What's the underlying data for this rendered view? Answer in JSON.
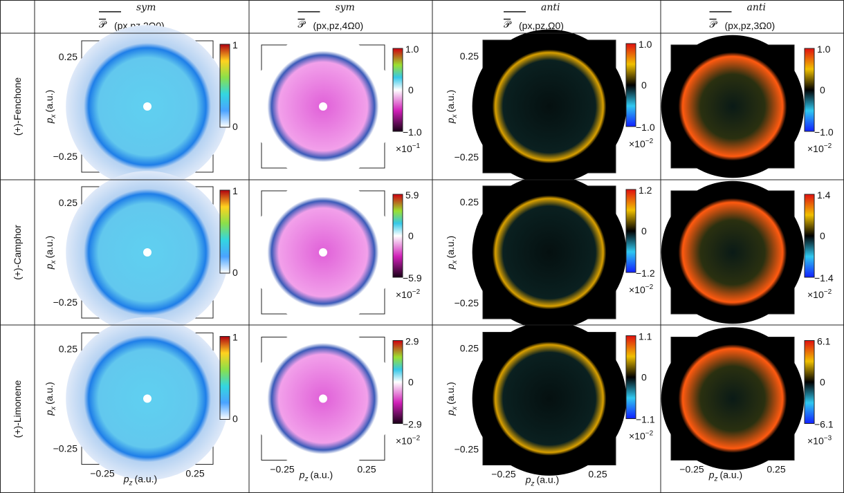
{
  "columns": [
    {
      "symbol": "𝒫",
      "superscript": "sym",
      "subscript": "(px,pz,2Ω0)"
    },
    {
      "symbol": "𝒫",
      "superscript": "sym",
      "subscript": "(px,pz,4Ω0)"
    },
    {
      "symbol": "𝒫",
      "superscript": "anti",
      "subscript": "(px,pz,Ω0)"
    },
    {
      "symbol": "𝒫",
      "superscript": "anti",
      "subscript": "(px,pz,3Ω0)"
    }
  ],
  "axes": {
    "variable": "p",
    "y_sub": "x",
    "x_sub": "z",
    "units": "(a.u.)",
    "tick_pos": "0.25",
    "tick_neg": "−0.25"
  },
  "rows": [
    {
      "label": "(+)-Fenchone",
      "panels": [
        {
          "max": "1",
          "min": "0"
        },
        {
          "max": "1.0",
          "mid": "0",
          "min": "−1.0",
          "scale": "×10",
          "exponent": "−1"
        },
        {
          "max": "1.0",
          "mid": "0",
          "min": "−1.0",
          "scale": "×10",
          "exponent": "−2"
        },
        {
          "max": "1.0",
          "mid": "0",
          "min": "−1.0",
          "scale": "×10",
          "exponent": "−2"
        }
      ]
    },
    {
      "label": "(+)-Camphor",
      "panels": [
        {
          "max": "1",
          "min": "0"
        },
        {
          "max": "5.9",
          "mid": "0",
          "min": "−5.9",
          "scale": "×10",
          "exponent": "−2"
        },
        {
          "max": "1.2",
          "mid": "0",
          "min": "−1.2",
          "scale": "×10",
          "exponent": "−2"
        },
        {
          "max": "1.4",
          "mid": "0",
          "min": "−1.4",
          "scale": "×10",
          "exponent": "−2"
        }
      ]
    },
    {
      "label": "(+)-Limonene",
      "panels": [
        {
          "max": "1",
          "min": "0"
        },
        {
          "max": "2.9",
          "mid": "0",
          "min": "−2.9",
          "scale": "×10",
          "exponent": "−2"
        },
        {
          "max": "1.1",
          "mid": "0",
          "min": "−1.1",
          "scale": "×10",
          "exponent": "−2"
        },
        {
          "max": "6.1",
          "mid": "0",
          "min": "−6.1",
          "scale": "×10",
          "exponent": "−3"
        }
      ]
    }
  ]
}
